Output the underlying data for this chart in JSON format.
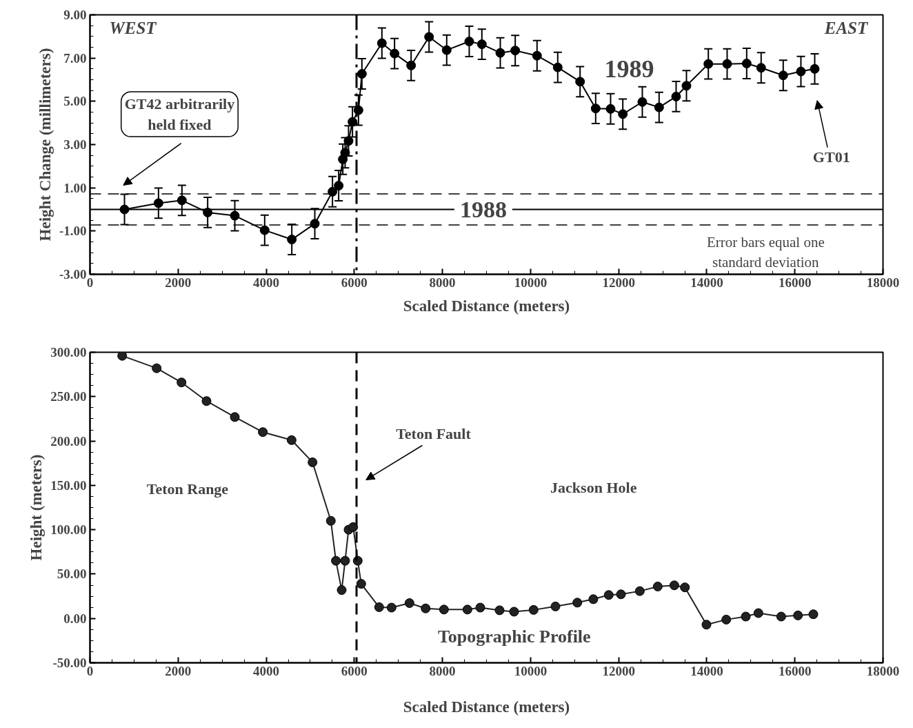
{
  "chart_data": [
    {
      "type": "line",
      "xlabel": "Scaled Distance (meters)",
      "ylabel": "Height Change (millimeters)",
      "xlim": [
        0,
        18000
      ],
      "ylim": [
        -3,
        9
      ],
      "xticks": [
        0,
        2000,
        4000,
        6000,
        8000,
        10000,
        12000,
        14000,
        16000,
        18000
      ],
      "yticks": [
        {
          "value": -3,
          "label": "-3.00"
        },
        {
          "value": -1,
          "label": "-1.00"
        },
        {
          "value": 1,
          "label": "1.00"
        },
        {
          "value": 3,
          "label": "3.00"
        },
        {
          "value": 5,
          "label": "5.00"
        },
        {
          "value": 7,
          "label": "7.00"
        },
        {
          "value": 9,
          "label": "9.00"
        }
      ],
      "grid": false,
      "marker": "circle",
      "line_style": "solid",
      "series": [
        {
          "name": "1988",
          "color": "#000000",
          "marker": "none",
          "x": [
            0,
            18000
          ],
          "values": [
            0,
            0
          ]
        },
        {
          "name": "1989",
          "color": "#000000",
          "x": [
            783,
            1555,
            2087,
            2671,
            3287,
            3965,
            4581,
            5103,
            5504,
            5645,
            5739,
            5791,
            5869,
            5958,
            6094,
            6172,
            6626,
            6913,
            7289,
            7696,
            8097,
            8608,
            8895,
            9313,
            9652,
            10147,
            10617,
            11124,
            11478,
            11817,
            12094,
            12537,
            12918,
            13304,
            13539,
            14035,
            14462,
            14906,
            15234,
            15735,
            16137,
            16450
          ],
          "values": [
            0.0,
            0.29,
            0.42,
            -0.14,
            -0.29,
            -0.96,
            -1.39,
            -0.66,
            0.82,
            1.1,
            2.32,
            2.62,
            3.17,
            4.05,
            4.59,
            6.27,
            7.69,
            7.21,
            6.66,
            7.98,
            7.37,
            7.77,
            7.64,
            7.24,
            7.35,
            7.11,
            6.57,
            5.91,
            4.67,
            4.65,
            4.41,
            4.97,
            4.72,
            5.22,
            5.72,
            6.73,
            6.73,
            6.75,
            6.55,
            6.2,
            6.38,
            6.5
          ],
          "errors": [
            0.7,
            0.7,
            0.7,
            0.7,
            0.7,
            0.7,
            0.7,
            0.7,
            0.7,
            0.7,
            0.7,
            0.7,
            0.7,
            0.7,
            0.7,
            0.7,
            0.7,
            0.7,
            0.7,
            0.7,
            0.7,
            0.7,
            0.7,
            0.7,
            0.7,
            0.7,
            0.7,
            0.7,
            0.7,
            0.7,
            0.7,
            0.7,
            0.7,
            0.7,
            0.7,
            0.7,
            0.7,
            0.7,
            0.7,
            0.7,
            0.7,
            0.7
          ]
        }
      ],
      "ref_lines": [
        {
          "axis": "y",
          "value": 0.72,
          "line_style": "dashed"
        },
        {
          "axis": "y",
          "value": -0.72,
          "line_style": "dashed"
        },
        {
          "axis": "x",
          "value": 6050,
          "line_style": "dashdot"
        }
      ],
      "annotations": [
        "WEST",
        "EAST",
        "GT42 arbitrarily held fixed",
        "GT01",
        "Error bars equal one standard deviation"
      ]
    },
    {
      "type": "line",
      "xlabel": "Scaled Distance (meters)",
      "ylabel": "Height (meters)",
      "xlim": [
        0,
        18000
      ],
      "ylim": [
        -50,
        300
      ],
      "xticks": [
        0,
        2000,
        4000,
        6000,
        8000,
        10000,
        12000,
        14000,
        16000,
        18000
      ],
      "yticks": [
        {
          "value": -50,
          "label": "-50.00"
        },
        {
          "value": 0,
          "label": "0.00"
        },
        {
          "value": 50,
          "label": "50.00"
        },
        {
          "value": 100,
          "label": "100.00"
        },
        {
          "value": 150,
          "label": "150.00"
        },
        {
          "value": 200,
          "label": "200.00"
        },
        {
          "value": 250,
          "label": "250.00"
        },
        {
          "value": 300,
          "label": "300.00"
        }
      ],
      "grid": false,
      "marker": "circle",
      "line_style": "solid",
      "series": [
        {
          "name": "Topographic Profile",
          "color": "#222222",
          "x": [
            731,
            1513,
            2077,
            2645,
            3287,
            3923,
            4576,
            5051,
            5467,
            5582,
            5713,
            5791,
            5869,
            5974,
            6078,
            6156,
            6563,
            6845,
            7252,
            7618,
            8035,
            8567,
            8859,
            9297,
            9626,
            10069,
            10565,
            11061,
            11425,
            11775,
            12052,
            12480,
            12887,
            13263,
            13503,
            13993,
            14442,
            14885,
            15172,
            15689,
            16070,
            16419
          ],
          "values": [
            296,
            282,
            266,
            245,
            227,
            210,
            201,
            176,
            110,
            65,
            32,
            65,
            100,
            103,
            65,
            39,
            12.7,
            12.2,
            17.3,
            11.3,
            10,
            10,
            12.2,
            9.2,
            7.6,
            9.6,
            13.5,
            17.8,
            21.7,
            26.4,
            27.2,
            30.8,
            36,
            37.3,
            35,
            -7,
            -1.3,
            2.1,
            6,
            2.1,
            3.4,
            4.7
          ]
        }
      ],
      "ref_lines": [
        {
          "axis": "x",
          "value": 6050,
          "line_style": "dashed"
        }
      ],
      "annotations": [
        "Teton Range",
        "Jackson Hole",
        "Teton Fault"
      ]
    }
  ]
}
